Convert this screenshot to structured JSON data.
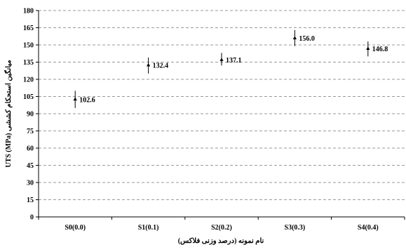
{
  "chart_data": {
    "type": "scatter",
    "xlabel": "نام نمونه (درصد وزنی فلاکس)",
    "ylabel": "UTS (MPa) میانگین استحکام کششی",
    "categories": [
      "S0(0.0)",
      "S1(0.1)",
      "S2(0.2)",
      "S3(0.3)",
      "S4(0.4)"
    ],
    "values": [
      102.6,
      132.4,
      137.1,
      156.0,
      146.8
    ],
    "value_labels": [
      "102.6",
      "132.4",
      "137.1",
      "156.0",
      "146.8"
    ],
    "error_low": [
      95,
      125,
      132,
      149,
      140
    ],
    "error_high": [
      110,
      139,
      143,
      163,
      153
    ],
    "ylim": [
      0,
      180
    ],
    "yticks": [
      "0",
      "15",
      "30",
      "45",
      "60",
      "75",
      "90",
      "105",
      "120",
      "135",
      "150",
      "165",
      "180"
    ],
    "grid": true,
    "colors": {
      "marker": "#000000",
      "grid": "#9a9a9a",
      "axis": "#000000"
    }
  }
}
